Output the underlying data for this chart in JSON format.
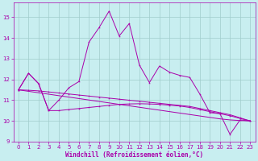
{
  "xlabel": "Windchill (Refroidissement éolien,°C)",
  "bg_color": "#c8eef0",
  "grid_color": "#a0cccc",
  "line_color": "#aa00aa",
  "spine_color": "#aa00aa",
  "xlim": [
    -0.5,
    23.5
  ],
  "ylim": [
    9.0,
    15.7
  ],
  "xticks": [
    0,
    1,
    2,
    3,
    4,
    5,
    6,
    7,
    8,
    9,
    10,
    11,
    12,
    13,
    14,
    15,
    16,
    17,
    18,
    19,
    20,
    21,
    22,
    23
  ],
  "yticks": [
    9,
    10,
    11,
    12,
    13,
    14,
    15
  ],
  "line1_y": [
    11.5,
    12.3,
    11.8,
    10.5,
    11.0,
    11.6,
    11.9,
    13.8,
    14.5,
    15.3,
    14.1,
    14.7,
    12.7,
    11.85,
    12.65,
    12.35,
    12.2,
    12.1,
    11.3,
    10.4,
    10.35,
    9.35,
    10.05,
    10.0
  ],
  "line2_y": [
    11.5,
    12.3,
    11.8,
    10.5,
    10.5,
    10.55,
    10.6,
    10.65,
    10.7,
    10.75,
    10.8,
    10.82,
    10.83,
    10.82,
    10.8,
    10.76,
    10.72,
    10.65,
    10.55,
    10.45,
    10.35,
    10.25,
    10.12,
    10.0
  ],
  "line3_y": [
    11.5,
    11.48,
    11.45,
    11.4,
    11.35,
    11.3,
    11.25,
    11.2,
    11.15,
    11.1,
    11.05,
    11.0,
    10.95,
    10.9,
    10.85,
    10.8,
    10.75,
    10.7,
    10.6,
    10.5,
    10.4,
    10.3,
    10.15,
    10.0
  ],
  "line4_y": [
    11.5,
    11.43,
    11.36,
    11.29,
    11.22,
    11.15,
    11.08,
    11.01,
    10.94,
    10.87,
    10.8,
    10.73,
    10.66,
    10.59,
    10.52,
    10.45,
    10.38,
    10.31,
    10.24,
    10.17,
    10.1,
    10.05,
    10.02,
    10.0
  ],
  "tick_fontsize": 5,
  "xlabel_fontsize": 5.5,
  "lw": 0.7,
  "ms": 2.0
}
